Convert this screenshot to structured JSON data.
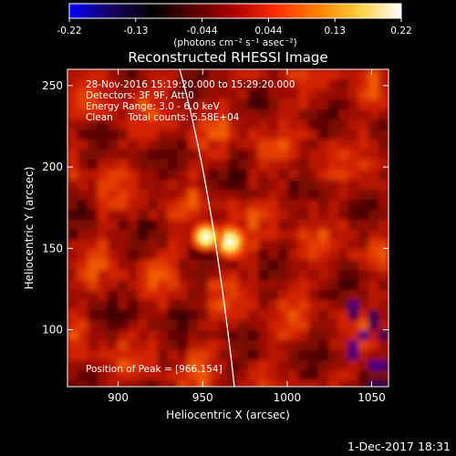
{
  "colorbar": {
    "ticks": [
      "-0.22",
      "-0.13",
      "-0.044",
      "0.044",
      "0.13",
      "0.22"
    ],
    "units": "(photons cm⁻² s⁻¹ asec⁻²)",
    "colors": [
      "#0000ff",
      "#1a0060",
      "#000000",
      "#5a0000",
      "#b00000",
      "#ff3000",
      "#ff8000",
      "#ffd040",
      "#ffffff"
    ]
  },
  "title": "Reconstructed RHESSI Image",
  "annotations": [
    "28-Nov-2016 15:19:20.000 to 15:29:20.000",
    "Detectors: 3F 9F, Att 0",
    "Energy Range: 3.0 - 6.0 keV",
    "Clean     Total counts: 5.58E+04"
  ],
  "peak_label": "Position of Peak = [966,154]",
  "axes": {
    "xlabel": "Heliocentric X (arcsec)",
    "ylabel": "Heliocentric Y (arcsec)",
    "xlim": [
      870,
      1060
    ],
    "ylim": [
      65,
      260
    ],
    "xticks": [
      {
        "value": 900,
        "label": "900"
      },
      {
        "value": 950,
        "label": "950"
      },
      {
        "value": 1000,
        "label": "1000"
      },
      {
        "value": 1050,
        "label": "1050"
      }
    ],
    "yticks": [
      {
        "value": 100,
        "label": "100"
      },
      {
        "value": 150,
        "label": "150"
      },
      {
        "value": 200,
        "label": "200"
      },
      {
        "value": 250,
        "label": "250"
      }
    ]
  },
  "sources": [
    {
      "x": 966,
      "y": 154,
      "strength": 1.0
    },
    {
      "x": 952,
      "y": 157,
      "strength": 0.85
    }
  ],
  "footer_date": "1-Dec-2017 18:31"
}
